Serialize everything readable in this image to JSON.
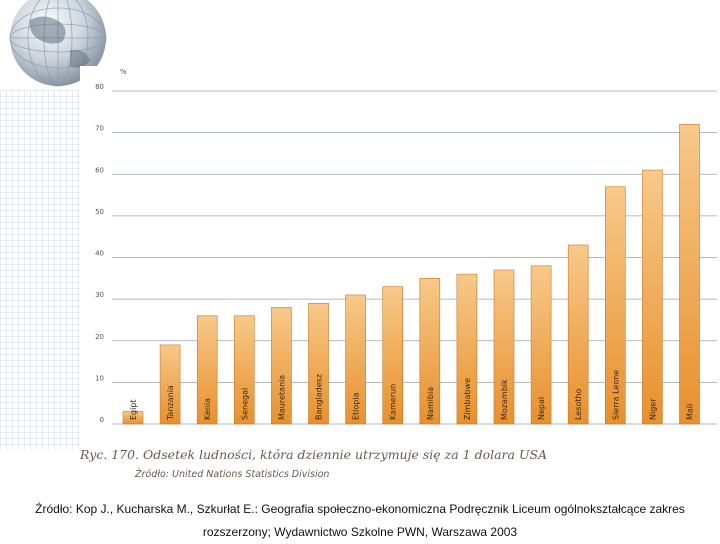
{
  "chart_data": {
    "type": "bar",
    "unit_label": "%",
    "categories": [
      "Egipt",
      "Tanzania",
      "Kenia",
      "Senegal",
      "Mauretania",
      "Bangladesz",
      "Etiopia",
      "Kamerun",
      "Namibia",
      "Zimbabwe",
      "Mozambik",
      "Nepal",
      "Lesotho",
      "Sierra Leone",
      "Niger",
      "Mali"
    ],
    "values": [
      3,
      19,
      26,
      26,
      28,
      29,
      31,
      33,
      35,
      36,
      37,
      38,
      43,
      57,
      61,
      72
    ],
    "ylim": [
      0,
      80
    ],
    "yticks": [
      "0",
      "10",
      "20",
      "30",
      "40",
      "50",
      "60",
      "70",
      "80"
    ],
    "title": "Ryc. 170. Odsetek ludności, która dziennie utrzymuje się za 1 dolara USA",
    "subtitle": "Źródło: United Nations Statistics Division",
    "grid": true,
    "colors": {
      "bar_top": "#f7c98a",
      "bar_bottom": "#e8902c",
      "bar_edge": "#c77a2a",
      "grid": "#9aa4ae"
    }
  },
  "footer": {
    "line1": "Źródło: Kop J., Kucharska M., Szkurłat E.: Geografia społeczno-ekonomiczna Podręcznik Liceum ogólnokształcące zakres",
    "line2": "rozszerzony; Wydawnictwo Szkolne PWN, Warszawa 2003"
  }
}
